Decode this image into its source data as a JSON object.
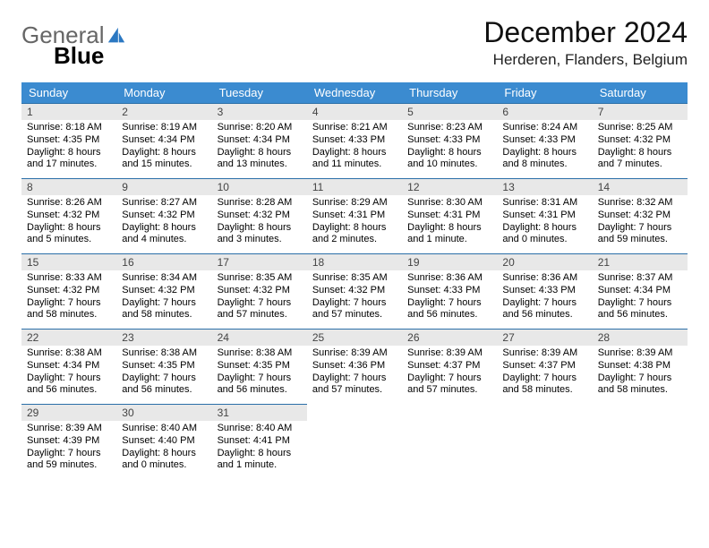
{
  "brand": {
    "part1": "General",
    "part2": "Blue"
  },
  "title": "December 2024",
  "location": "Herderen, Flanders, Belgium",
  "colors": {
    "header_bg": "#3b8bd0",
    "header_text": "#ffffff",
    "cell_border": "#2b6fa8",
    "daynum_bg": "#e8e8e8",
    "logo_blue": "#2b78c2"
  },
  "day_headers": [
    "Sunday",
    "Monday",
    "Tuesday",
    "Wednesday",
    "Thursday",
    "Friday",
    "Saturday"
  ],
  "days": [
    {
      "n": "1",
      "sunrise": "Sunrise: 8:18 AM",
      "sunset": "Sunset: 4:35 PM",
      "daylight": "Daylight: 8 hours and 17 minutes."
    },
    {
      "n": "2",
      "sunrise": "Sunrise: 8:19 AM",
      "sunset": "Sunset: 4:34 PM",
      "daylight": "Daylight: 8 hours and 15 minutes."
    },
    {
      "n": "3",
      "sunrise": "Sunrise: 8:20 AM",
      "sunset": "Sunset: 4:34 PM",
      "daylight": "Daylight: 8 hours and 13 minutes."
    },
    {
      "n": "4",
      "sunrise": "Sunrise: 8:21 AM",
      "sunset": "Sunset: 4:33 PM",
      "daylight": "Daylight: 8 hours and 11 minutes."
    },
    {
      "n": "5",
      "sunrise": "Sunrise: 8:23 AM",
      "sunset": "Sunset: 4:33 PM",
      "daylight": "Daylight: 8 hours and 10 minutes."
    },
    {
      "n": "6",
      "sunrise": "Sunrise: 8:24 AM",
      "sunset": "Sunset: 4:33 PM",
      "daylight": "Daylight: 8 hours and 8 minutes."
    },
    {
      "n": "7",
      "sunrise": "Sunrise: 8:25 AM",
      "sunset": "Sunset: 4:32 PM",
      "daylight": "Daylight: 8 hours and 7 minutes."
    },
    {
      "n": "8",
      "sunrise": "Sunrise: 8:26 AM",
      "sunset": "Sunset: 4:32 PM",
      "daylight": "Daylight: 8 hours and 5 minutes."
    },
    {
      "n": "9",
      "sunrise": "Sunrise: 8:27 AM",
      "sunset": "Sunset: 4:32 PM",
      "daylight": "Daylight: 8 hours and 4 minutes."
    },
    {
      "n": "10",
      "sunrise": "Sunrise: 8:28 AM",
      "sunset": "Sunset: 4:32 PM",
      "daylight": "Daylight: 8 hours and 3 minutes."
    },
    {
      "n": "11",
      "sunrise": "Sunrise: 8:29 AM",
      "sunset": "Sunset: 4:31 PM",
      "daylight": "Daylight: 8 hours and 2 minutes."
    },
    {
      "n": "12",
      "sunrise": "Sunrise: 8:30 AM",
      "sunset": "Sunset: 4:31 PM",
      "daylight": "Daylight: 8 hours and 1 minute."
    },
    {
      "n": "13",
      "sunrise": "Sunrise: 8:31 AM",
      "sunset": "Sunset: 4:31 PM",
      "daylight": "Daylight: 8 hours and 0 minutes."
    },
    {
      "n": "14",
      "sunrise": "Sunrise: 8:32 AM",
      "sunset": "Sunset: 4:32 PM",
      "daylight": "Daylight: 7 hours and 59 minutes."
    },
    {
      "n": "15",
      "sunrise": "Sunrise: 8:33 AM",
      "sunset": "Sunset: 4:32 PM",
      "daylight": "Daylight: 7 hours and 58 minutes."
    },
    {
      "n": "16",
      "sunrise": "Sunrise: 8:34 AM",
      "sunset": "Sunset: 4:32 PM",
      "daylight": "Daylight: 7 hours and 58 minutes."
    },
    {
      "n": "17",
      "sunrise": "Sunrise: 8:35 AM",
      "sunset": "Sunset: 4:32 PM",
      "daylight": "Daylight: 7 hours and 57 minutes."
    },
    {
      "n": "18",
      "sunrise": "Sunrise: 8:35 AM",
      "sunset": "Sunset: 4:32 PM",
      "daylight": "Daylight: 7 hours and 57 minutes."
    },
    {
      "n": "19",
      "sunrise": "Sunrise: 8:36 AM",
      "sunset": "Sunset: 4:33 PM",
      "daylight": "Daylight: 7 hours and 56 minutes."
    },
    {
      "n": "20",
      "sunrise": "Sunrise: 8:36 AM",
      "sunset": "Sunset: 4:33 PM",
      "daylight": "Daylight: 7 hours and 56 minutes."
    },
    {
      "n": "21",
      "sunrise": "Sunrise: 8:37 AM",
      "sunset": "Sunset: 4:34 PM",
      "daylight": "Daylight: 7 hours and 56 minutes."
    },
    {
      "n": "22",
      "sunrise": "Sunrise: 8:38 AM",
      "sunset": "Sunset: 4:34 PM",
      "daylight": "Daylight: 7 hours and 56 minutes."
    },
    {
      "n": "23",
      "sunrise": "Sunrise: 8:38 AM",
      "sunset": "Sunset: 4:35 PM",
      "daylight": "Daylight: 7 hours and 56 minutes."
    },
    {
      "n": "24",
      "sunrise": "Sunrise: 8:38 AM",
      "sunset": "Sunset: 4:35 PM",
      "daylight": "Daylight: 7 hours and 56 minutes."
    },
    {
      "n": "25",
      "sunrise": "Sunrise: 8:39 AM",
      "sunset": "Sunset: 4:36 PM",
      "daylight": "Daylight: 7 hours and 57 minutes."
    },
    {
      "n": "26",
      "sunrise": "Sunrise: 8:39 AM",
      "sunset": "Sunset: 4:37 PM",
      "daylight": "Daylight: 7 hours and 57 minutes."
    },
    {
      "n": "27",
      "sunrise": "Sunrise: 8:39 AM",
      "sunset": "Sunset: 4:37 PM",
      "daylight": "Daylight: 7 hours and 58 minutes."
    },
    {
      "n": "28",
      "sunrise": "Sunrise: 8:39 AM",
      "sunset": "Sunset: 4:38 PM",
      "daylight": "Daylight: 7 hours and 58 minutes."
    },
    {
      "n": "29",
      "sunrise": "Sunrise: 8:39 AM",
      "sunset": "Sunset: 4:39 PM",
      "daylight": "Daylight: 7 hours and 59 minutes."
    },
    {
      "n": "30",
      "sunrise": "Sunrise: 8:40 AM",
      "sunset": "Sunset: 4:40 PM",
      "daylight": "Daylight: 8 hours and 0 minutes."
    },
    {
      "n": "31",
      "sunrise": "Sunrise: 8:40 AM",
      "sunset": "Sunset: 4:41 PM",
      "daylight": "Daylight: 8 hours and 1 minute."
    }
  ]
}
